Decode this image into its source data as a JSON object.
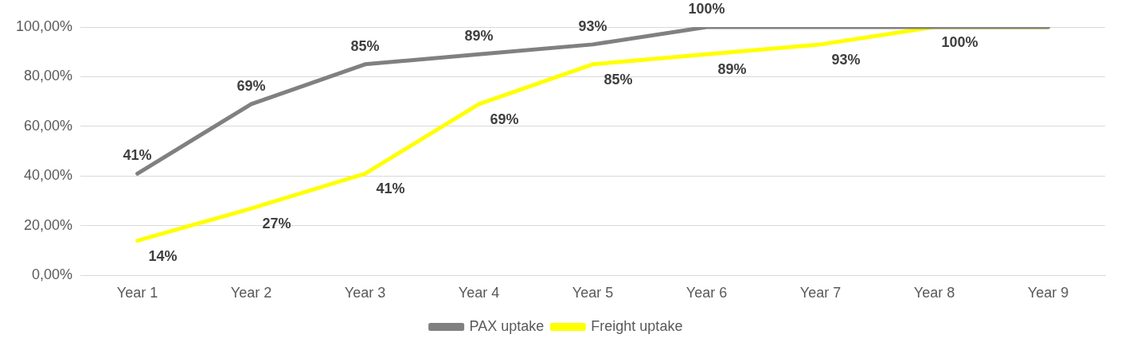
{
  "chart_data": {
    "type": "line",
    "categories": [
      "Year 1",
      "Year 2",
      "Year 3",
      "Year 4",
      "Year 5",
      "Year 6",
      "Year 7",
      "Year 8",
      "Year 9"
    ],
    "ylim": [
      0,
      100
    ],
    "yticks": [
      {
        "value": 0,
        "label": "0,00%"
      },
      {
        "value": 20,
        "label": "20,00%"
      },
      {
        "value": 40,
        "label": "40,00%"
      },
      {
        "value": 60,
        "label": "60,00%"
      },
      {
        "value": 80,
        "label": "80,00%"
      },
      {
        "value": 100,
        "label": "100,00%"
      }
    ],
    "grid": "y",
    "legend": "bottom",
    "marker": "none",
    "line_style": "solid",
    "series": [
      {
        "name": "PAX uptake",
        "color": "#808080",
        "values": [
          41,
          69,
          85,
          89,
          93,
          100,
          100,
          100,
          100
        ],
        "value_labels": [
          "41%",
          "69%",
          "85%",
          "89%",
          "93%",
          "100%",
          null,
          null,
          null
        ]
      },
      {
        "name": "Freight uptake",
        "color": "#ffff00",
        "values": [
          14,
          27,
          41,
          69,
          85,
          89,
          93,
          100,
          100
        ],
        "value_labels": [
          "14%",
          "27%",
          "41%",
          "69%",
          "85%",
          "89%",
          "93%",
          "100%",
          null
        ]
      }
    ]
  }
}
